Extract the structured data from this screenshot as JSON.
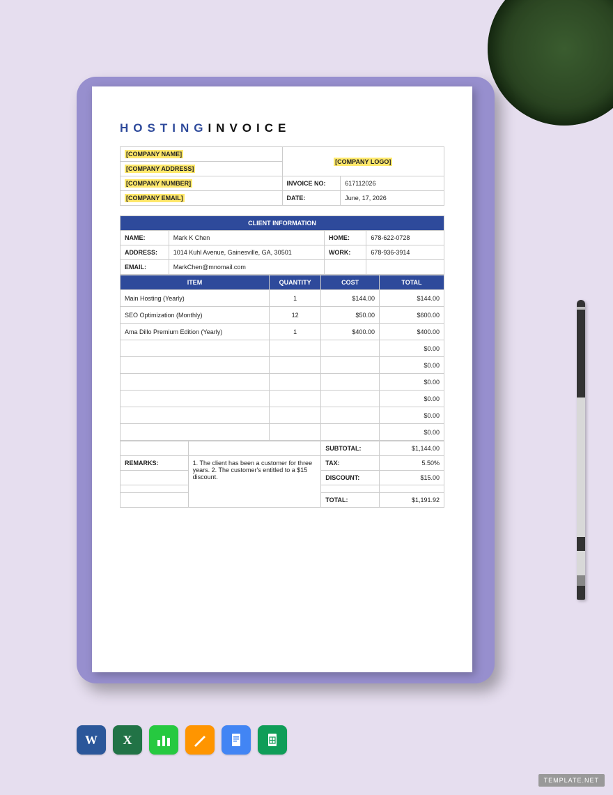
{
  "doc": {
    "title_part1": "HOSTING",
    "title_part2": "INVOICE"
  },
  "colors": {
    "accent": "#2e4a9b",
    "highlight": "#ffe86b",
    "page_bg": "#ffffff",
    "clipboard": "#978fce",
    "stage_bg": "#e6deef",
    "border": "#cccccc"
  },
  "company": {
    "name_placeholder": "[COMPANY NAME]",
    "address_placeholder": "[COMPANY ADDRESS]",
    "number_placeholder": "[COMPANY NUMBER]",
    "email_placeholder": "[COMPANY EMAIL]",
    "logo_placeholder": "[COMPANY LOGO]"
  },
  "invoice": {
    "label_no": "INVOICE NO:",
    "no": "617112026",
    "label_date": "DATE:",
    "date": "June, 17, 2026"
  },
  "client": {
    "section_title": "CLIENT INFORMATION",
    "labels": {
      "name": "NAME:",
      "home": "HOME:",
      "address": "ADDRESS:",
      "work": "WORK:",
      "email": "EMAIL:"
    },
    "name": "Mark K Chen",
    "home": "678-622-0728",
    "address": "1014 Kuhl Avenue, Gainesville, GA, 30501",
    "work": "678-936-3914",
    "email": "MarkChen@mnomail.com"
  },
  "items": {
    "headers": {
      "item": "ITEM",
      "qty": "QUANTITY",
      "cost": "COST",
      "total": "TOTAL"
    },
    "rows": [
      {
        "item": "Main Hosting (Yearly)",
        "qty": "1",
        "cost": "$144.00",
        "total": "$144.00"
      },
      {
        "item": "SEO Optimization (Monthly)",
        "qty": "12",
        "cost": "$50.00",
        "total": "$600.00"
      },
      {
        "item": "Ama Dillo Premium Edition (Yearly)",
        "qty": "1",
        "cost": "$400.00",
        "total": "$400.00"
      },
      {
        "item": "",
        "qty": "",
        "cost": "",
        "total": "$0.00"
      },
      {
        "item": "",
        "qty": "",
        "cost": "",
        "total": "$0.00"
      },
      {
        "item": "",
        "qty": "",
        "cost": "",
        "total": "$0.00"
      },
      {
        "item": "",
        "qty": "",
        "cost": "",
        "total": "$0.00"
      },
      {
        "item": "",
        "qty": "",
        "cost": "",
        "total": "$0.00"
      },
      {
        "item": "",
        "qty": "",
        "cost": "",
        "total": "$0.00"
      }
    ]
  },
  "summary": {
    "subtotal_label": "SUBTOTAL:",
    "subtotal": "$1,144.00",
    "tax_label": "TAX:",
    "tax": "5.50%",
    "discount_label": "DISCOUNT:",
    "discount": "$15.00",
    "total_label": "TOTAL:",
    "total": "$1,191.92",
    "remarks_label": "REMARKS:",
    "remarks": "1. The client has been a customer for three years. 2. The customer's entitled to a $15 discount."
  },
  "footer": {
    "watermark": "TEMPLATE.NET",
    "apps": [
      "Word",
      "Excel",
      "Numbers",
      "Pages",
      "Google Docs",
      "Google Sheets"
    ]
  }
}
